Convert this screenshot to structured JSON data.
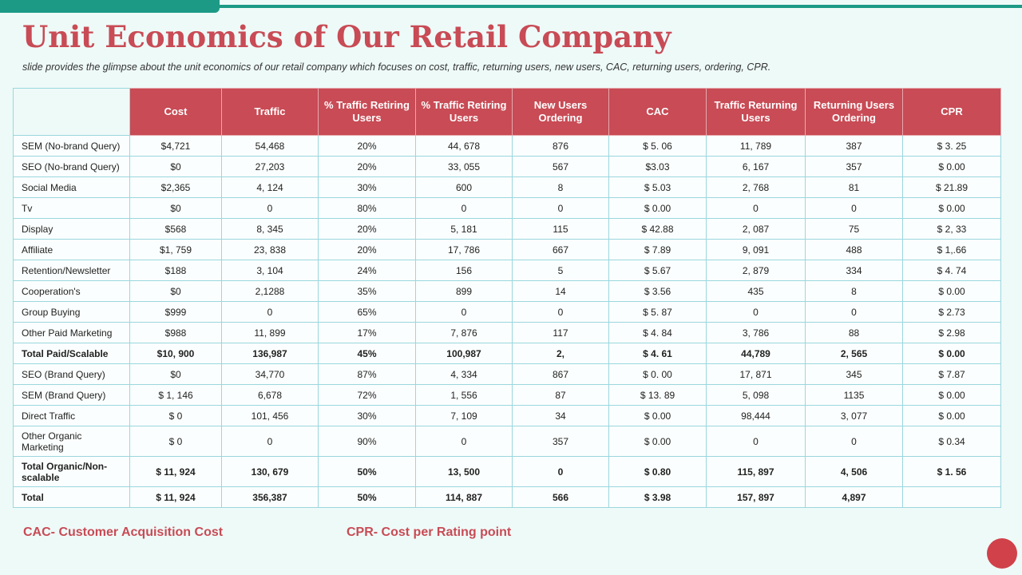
{
  "title": "Unit Economics of  Our Retail Company",
  "subtitle": "slide provides  the glimpse about the unit economics of our retail company which focuses on cost, traffic, returning users, new users, CAC, returning users, ordering,  CPR.",
  "table": {
    "headers": [
      "",
      "Cost",
      "Traffic",
      "% Traffic Retiring Users",
      "% Traffic Retiring Users",
      "New Users Ordering",
      "CAC",
      "Traffic Returning Users",
      "Returning Users Ordering",
      "CPR"
    ],
    "rows": [
      {
        "cells": [
          "SEM (No-brand Query)",
          "$4,721",
          "54,468",
          "20%",
          "44, 678",
          "876",
          "$ 5. 06",
          "11, 789",
          "387",
          "$ 3. 25"
        ]
      },
      {
        "cells": [
          "SEO (No-brand Query)",
          "$0",
          "27,203",
          "20%",
          "33, 055",
          "567",
          "$3.03",
          "6, 167",
          "357",
          "$ 0.00"
        ]
      },
      {
        "cells": [
          "Social Media",
          "$2,365",
          "4, 124",
          "30%",
          "600",
          "8",
          "$ 5.03",
          "2, 768",
          "81",
          "$ 21.89"
        ]
      },
      {
        "cells": [
          "Tv",
          "$0",
          "0",
          "80%",
          "0",
          "0",
          "$ 0.00",
          "0",
          "0",
          "$ 0.00"
        ]
      },
      {
        "cells": [
          "Display",
          "$568",
          "8, 345",
          "20%",
          "5, 181",
          "115",
          "$ 42.88",
          "2, 087",
          "75",
          "$ 2, 33"
        ]
      },
      {
        "cells": [
          "Affiliate",
          "$1, 759",
          "23, 838",
          "20%",
          "17, 786",
          "667",
          "$ 7.89",
          "9, 091",
          "488",
          "$ 1,.66"
        ]
      },
      {
        "cells": [
          "Retention/Newsletter",
          "$188",
          "3, 104",
          "24%",
          "156",
          "5",
          "$ 5.67",
          "2, 879",
          "334",
          "$ 4. 74"
        ]
      },
      {
        "cells": [
          "Cooperation's",
          "$0",
          "2,1288",
          "35%",
          "899",
          "14",
          "$ 3.56",
          "435",
          "8",
          "$ 0.00"
        ]
      },
      {
        "cells": [
          "Group Buying",
          "$999",
          "0",
          "65%",
          "0",
          "0",
          "$ 5. 87",
          "0",
          "0",
          "$ 2.73"
        ]
      },
      {
        "cells": [
          "Other Paid Marketing",
          "$988",
          "11, 899",
          "17%",
          "7, 876",
          "117",
          "$ 4. 84",
          "3, 786",
          "88",
          "$ 2.98"
        ]
      },
      {
        "cells": [
          "Total Paid/Scalable",
          "$10, 900",
          "136,987",
          "45%",
          "100,987",
          "2,",
          "$ 4. 61",
          "44,789",
          "2, 565",
          "$ 0.00"
        ],
        "bold": true
      },
      {
        "cells": [
          "SEO (Brand Query)",
          "$0",
          "34,770",
          "87%",
          "4, 334",
          "867",
          "$ 0. 00",
          "17, 871",
          "345",
          "$ 7.87"
        ]
      },
      {
        "cells": [
          "SEM (Brand Query)",
          "$ 1, 146",
          "6,678",
          "72%",
          "1, 556",
          "87",
          "$ 13. 89",
          "5, 098",
          "1135",
          "$ 0.00"
        ]
      },
      {
        "cells": [
          "Direct Traffic",
          "$ 0",
          "101, 456",
          "30%",
          "7, 109",
          "34",
          "$ 0.00",
          "98,444",
          "3, 077",
          "$ 0.00"
        ]
      },
      {
        "cells": [
          "Other Organic Marketing",
          "$ 0",
          "0",
          "90%",
          "0",
          "357",
          "$ 0.00",
          "0",
          "0",
          "$ 0.34"
        ],
        "tall": true
      },
      {
        "cells": [
          "Total Organic/Non-scalable",
          "$ 11, 924",
          "130, 679",
          "50%",
          "13, 500",
          "0",
          "$ 0.80",
          "115, 897",
          "4, 506",
          "$ 1. 56"
        ],
        "bold": true,
        "tall": true
      },
      {
        "cells": [
          "Total",
          "$ 11, 924",
          "356,387",
          "50%",
          "114, 887",
          "566",
          "$ 3.98",
          "157, 897",
          "4,897",
          ""
        ],
        "bold": true
      }
    ]
  },
  "footnotes": {
    "cac": "CAC- Customer Acquisition  Cost",
    "cpr": "CPR- Cost per Rating point"
  },
  "colors": {
    "accent": "#c84b55",
    "teal": "#1c9a86",
    "background": "#eefaf8",
    "grid": "#9ad7de"
  }
}
